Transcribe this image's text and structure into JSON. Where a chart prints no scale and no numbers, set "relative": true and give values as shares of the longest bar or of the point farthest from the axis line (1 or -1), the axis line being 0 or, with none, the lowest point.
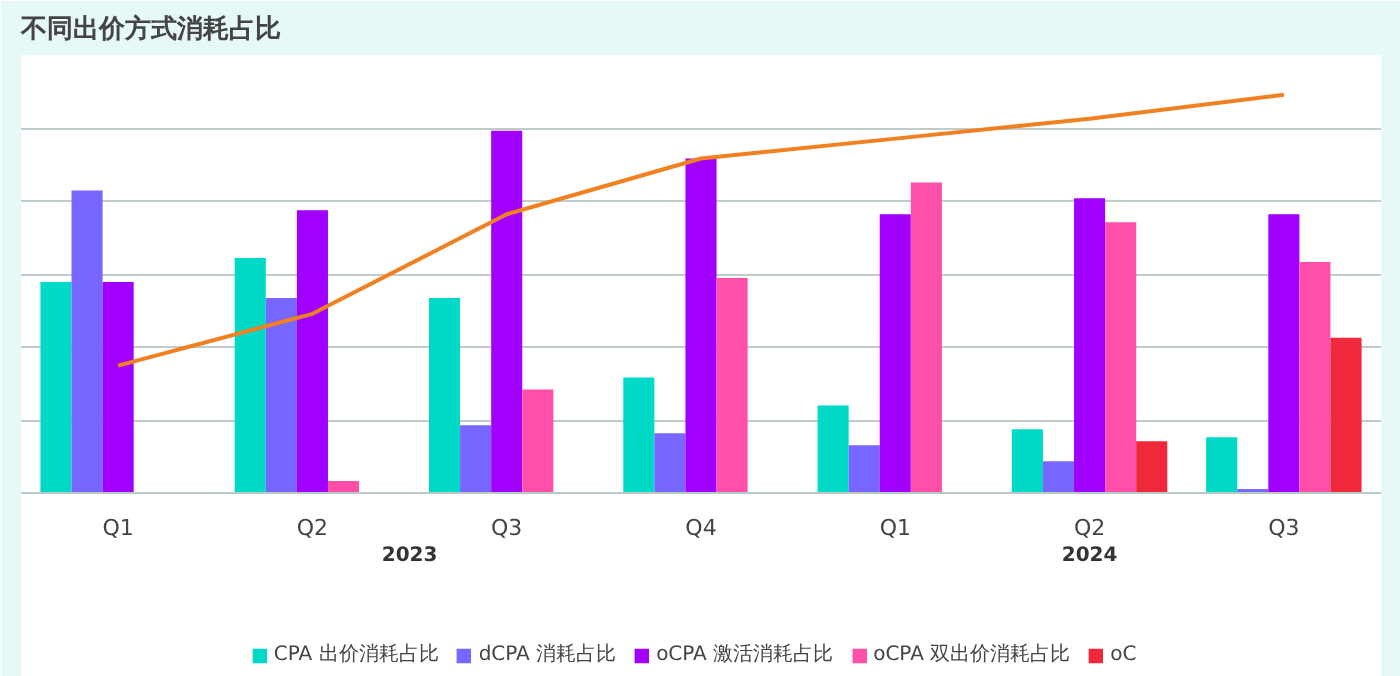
{
  "chart_data": {
    "type": "bar",
    "title": "不同出价方式消耗占比",
    "relative": true,
    "categories": [
      "Q1",
      "Q2",
      "Q3",
      "Q4",
      "Q1",
      "Q2",
      "Q3"
    ],
    "annotations": [
      "2023",
      "2024"
    ],
    "series": [
      {
        "name": "CPA 出价消耗占比",
        "color": "#00d9c6",
        "values": [
          0.53,
          0.59,
          0.49,
          0.29,
          0.22,
          0.16,
          0.14
        ]
      },
      {
        "name": "dCPA 消耗占比",
        "color": "#7766ff",
        "values": [
          0.76,
          0.49,
          0.17,
          0.15,
          0.12,
          0.08,
          0.01
        ]
      },
      {
        "name": "oCPA 激活消耗占比",
        "color": "#a100ff",
        "values": [
          0.53,
          0.71,
          0.91,
          0.84,
          0.7,
          0.74,
          0.7
        ]
      },
      {
        "name": "oCPA 双出价消耗占比",
        "color": "#ff4fa8",
        "values": [
          null,
          0.03,
          0.26,
          0.54,
          0.78,
          0.68,
          0.58
        ]
      },
      {
        "name": "oC",
        "color": "#f0283c",
        "values": [
          null,
          null,
          null,
          null,
          null,
          0.13,
          0.39
        ]
      },
      {
        "type": "line",
        "color": "#f08020",
        "values": [
          0.32,
          0.45,
          0.7,
          0.84,
          0.89,
          0.94,
          1.0
        ]
      }
    ],
    "grid": "y",
    "legend": "bottom"
  }
}
